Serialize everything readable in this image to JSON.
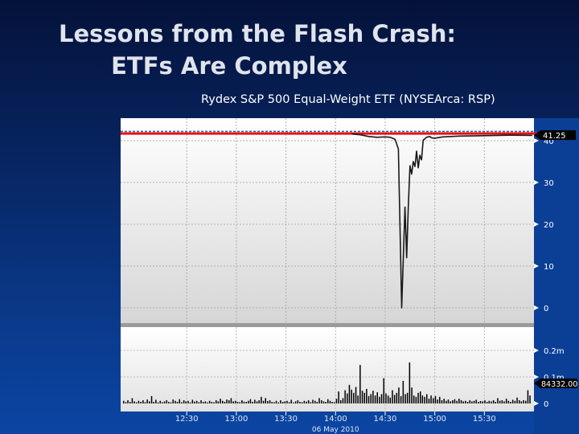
{
  "slide": {
    "title_line1": "Lessons from the Flash Crash:",
    "title_line2": "ETFs Are Complex",
    "caption": "Rydex S&P 500 Equal-Weight ETF (NYSEArca: RSP)"
  },
  "colors": {
    "background_top": "#04123a",
    "background_bottom": "#0b45a3",
    "price_line": "#1a1a1a",
    "reference_line": "#e81010",
    "dashed_line": "#2f4fb0",
    "volume_bars": "#000000",
    "last_price_tag": "#000000"
  },
  "chart_data": [
    {
      "type": "line",
      "panel": "price",
      "ylim": [
        0,
        44
      ],
      "yticks": [
        "0",
        "10",
        "20",
        "30",
        "40"
      ],
      "last_price_label": "41.25",
      "reference_line_y": 41.7,
      "dashed_line_y": 42.2,
      "x_times": [
        "11:50",
        "12:00",
        "12:15",
        "12:30",
        "12:45",
        "13:00",
        "13:15",
        "13:30",
        "13:45",
        "14:00",
        "14:10",
        "14:15",
        "14:20",
        "14:25",
        "14:30",
        "14:33",
        "14:36",
        "14:38",
        "14:40",
        "14:42",
        "14:43",
        "14:44",
        "14:45",
        "14:46",
        "14:47",
        "14:48",
        "14:49",
        "14:50",
        "14:51",
        "14:52",
        "14:53",
        "14:55",
        "14:57",
        "14:58",
        "15:00",
        "15:05",
        "15:10",
        "15:15",
        "15:30",
        "15:45",
        "15:59"
      ],
      "y_values": [
        41.7,
        41.7,
        41.7,
        41.7,
        41.7,
        41.7,
        41.7,
        41.7,
        41.7,
        41.7,
        41.6,
        41.4,
        41.0,
        40.8,
        40.9,
        40.8,
        40.3,
        38.0,
        0,
        24.1,
        12,
        24,
        34,
        32,
        35,
        33.8,
        37.5,
        33.5,
        36.5,
        35.4,
        40.1,
        40.8,
        41.0,
        40.7,
        40.6,
        40.9,
        41.0,
        41.1,
        41.2,
        41.3,
        41.25
      ]
    },
    {
      "type": "bar",
      "panel": "volume",
      "ylim": [
        0,
        0.3
      ],
      "yticks": [
        "0",
        "0.1m",
        "0.2m"
      ],
      "last_volume_label": "84332.00",
      "x_labels": [
        "12:30",
        "13:00",
        "13:30",
        "14:00",
        "14:30",
        "15:00",
        "15:30"
      ],
      "date_label": "06 May 2010",
      "values": [
        0.01,
        0.005,
        0.012,
        0.006,
        0.02,
        0.008,
        0.004,
        0.01,
        0.006,
        0.012,
        0.005,
        0.015,
        0.008,
        0.028,
        0.006,
        0.014,
        0.004,
        0.01,
        0.005,
        0.008,
        0.012,
        0.006,
        0.004,
        0.015,
        0.01,
        0.006,
        0.016,
        0.005,
        0.012,
        0.008,
        0.01,
        0.004,
        0.014,
        0.007,
        0.01,
        0.005,
        0.012,
        0.006,
        0.008,
        0.004,
        0.01,
        0.006,
        0.005,
        0.012,
        0.008,
        0.018,
        0.01,
        0.006,
        0.015,
        0.012,
        0.02,
        0.008,
        0.01,
        0.006,
        0.005,
        0.012,
        0.007,
        0.006,
        0.01,
        0.016,
        0.006,
        0.014,
        0.008,
        0.012,
        0.025,
        0.01,
        0.02,
        0.009,
        0.012,
        0.006,
        0.005,
        0.01,
        0.004,
        0.012,
        0.006,
        0.008,
        0.01,
        0.005,
        0.014,
        0.004,
        0.008,
        0.012,
        0.006,
        0.005,
        0.01,
        0.007,
        0.012,
        0.005,
        0.014,
        0.01,
        0.006,
        0.02,
        0.012,
        0.008,
        0.006,
        0.016,
        0.01,
        0.006,
        0.005,
        0.018,
        0.045,
        0.012,
        0.02,
        0.05,
        0.038,
        0.07,
        0.052,
        0.04,
        0.062,
        0.03,
        0.145,
        0.048,
        0.04,
        0.055,
        0.028,
        0.035,
        0.048,
        0.03,
        0.042,
        0.025,
        0.035,
        0.095,
        0.038,
        0.03,
        0.022,
        0.05,
        0.032,
        0.04,
        0.06,
        0.028,
        0.085,
        0.035,
        0.04,
        0.155,
        0.06,
        0.03,
        0.025,
        0.04,
        0.045,
        0.03,
        0.025,
        0.035,
        0.018,
        0.03,
        0.02,
        0.028,
        0.015,
        0.025,
        0.012,
        0.018,
        0.01,
        0.015,
        0.008,
        0.012,
        0.016,
        0.01,
        0.018,
        0.012,
        0.008,
        0.01,
        0.006,
        0.012,
        0.008,
        0.01,
        0.014,
        0.006,
        0.009,
        0.008,
        0.012,
        0.006,
        0.01,
        0.008,
        0.012,
        0.006,
        0.02,
        0.01,
        0.012,
        0.008,
        0.018,
        0.01,
        0.006,
        0.014,
        0.01,
        0.022,
        0.012,
        0.008,
        0.012,
        0.01,
        0.05,
        0.03
      ]
    }
  ]
}
